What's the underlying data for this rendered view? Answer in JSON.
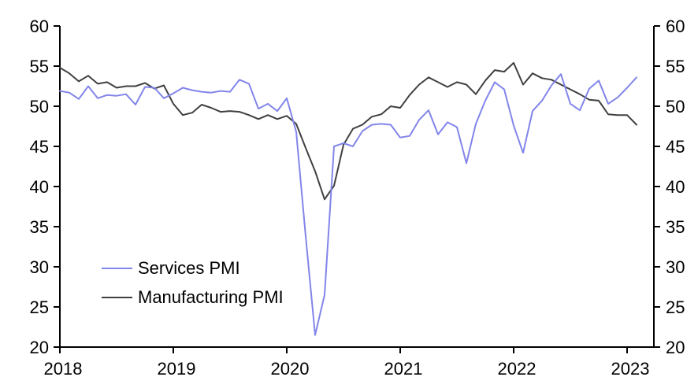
{
  "chart_data": {
    "type": "line",
    "title": "",
    "xlabel": "",
    "ylabel": "",
    "grid": false,
    "dual_y_axis": true,
    "ylim": [
      20,
      60
    ],
    "y_ticks": [
      20,
      25,
      30,
      35,
      40,
      45,
      50,
      55,
      60
    ],
    "x_tick_labels": [
      "2018",
      "2019",
      "2020",
      "2021",
      "2022",
      "2023"
    ],
    "x_frequency": "monthly",
    "legend_position": "inside-left-middle",
    "x": [
      "2018-01",
      "2018-02",
      "2018-03",
      "2018-04",
      "2018-05",
      "2018-06",
      "2018-07",
      "2018-08",
      "2018-09",
      "2018-10",
      "2018-11",
      "2018-12",
      "2019-01",
      "2019-02",
      "2019-03",
      "2019-04",
      "2019-05",
      "2019-06",
      "2019-07",
      "2019-08",
      "2019-09",
      "2019-10",
      "2019-11",
      "2019-12",
      "2020-01",
      "2020-02",
      "2020-03",
      "2020-04",
      "2020-05",
      "2020-06",
      "2020-07",
      "2020-08",
      "2020-09",
      "2020-10",
      "2020-11",
      "2020-12",
      "2021-01",
      "2021-02",
      "2021-03",
      "2021-04",
      "2021-05",
      "2021-06",
      "2021-07",
      "2021-08",
      "2021-09",
      "2021-10",
      "2021-11",
      "2021-12",
      "2022-01",
      "2022-02",
      "2022-03",
      "2022-04",
      "2022-05",
      "2022-06",
      "2022-07",
      "2022-08",
      "2022-09",
      "2022-10",
      "2022-11",
      "2022-12",
      "2023-01",
      "2023-02"
    ],
    "series": [
      {
        "name": "Services PMI",
        "color": "#8285e9",
        "values": [
          51.9,
          51.7,
          50.9,
          52.5,
          51.0,
          51.4,
          51.3,
          51.5,
          50.2,
          52.4,
          52.3,
          51.0,
          51.6,
          52.3,
          52.0,
          51.8,
          51.7,
          51.9,
          51.8,
          53.3,
          52.8,
          49.7,
          50.3,
          49.4,
          51.0,
          46.8,
          33.8,
          21.5,
          26.5,
          45.0,
          45.4,
          45.0,
          46.9,
          47.7,
          47.8,
          47.7,
          46.1,
          46.3,
          48.3,
          49.5,
          46.5,
          48.0,
          47.4,
          42.9,
          47.8,
          50.7,
          53.0,
          52.1,
          47.6,
          44.2,
          49.4,
          50.7,
          52.6,
          54.0,
          50.3,
          49.5,
          52.2,
          53.2,
          50.3,
          51.1,
          52.3,
          53.6
        ]
      },
      {
        "name": "Manufacturing PMI",
        "color": "#404040",
        "values": [
          54.8,
          54.1,
          53.1,
          53.8,
          52.8,
          53.0,
          52.3,
          52.5,
          52.5,
          52.9,
          52.2,
          52.6,
          50.3,
          48.9,
          49.2,
          50.2,
          49.8,
          49.3,
          49.4,
          49.3,
          48.9,
          48.4,
          48.9,
          48.4,
          48.8,
          47.8,
          44.8,
          41.9,
          38.4,
          40.1,
          45.2,
          47.2,
          47.7,
          48.7,
          49.0,
          50.0,
          49.8,
          51.4,
          52.7,
          53.6,
          53.0,
          52.4,
          53.0,
          52.7,
          51.5,
          53.2,
          54.5,
          54.3,
          55.4,
          52.7,
          54.1,
          53.5,
          53.3,
          52.7,
          52.1,
          51.5,
          50.8,
          50.7,
          49.0,
          48.9,
          48.9,
          47.7
        ]
      }
    ],
    "axis_color": "#000000"
  },
  "legend": {
    "services_label": "Services PMI",
    "manufacturing_label": "Manufacturing PMI"
  }
}
